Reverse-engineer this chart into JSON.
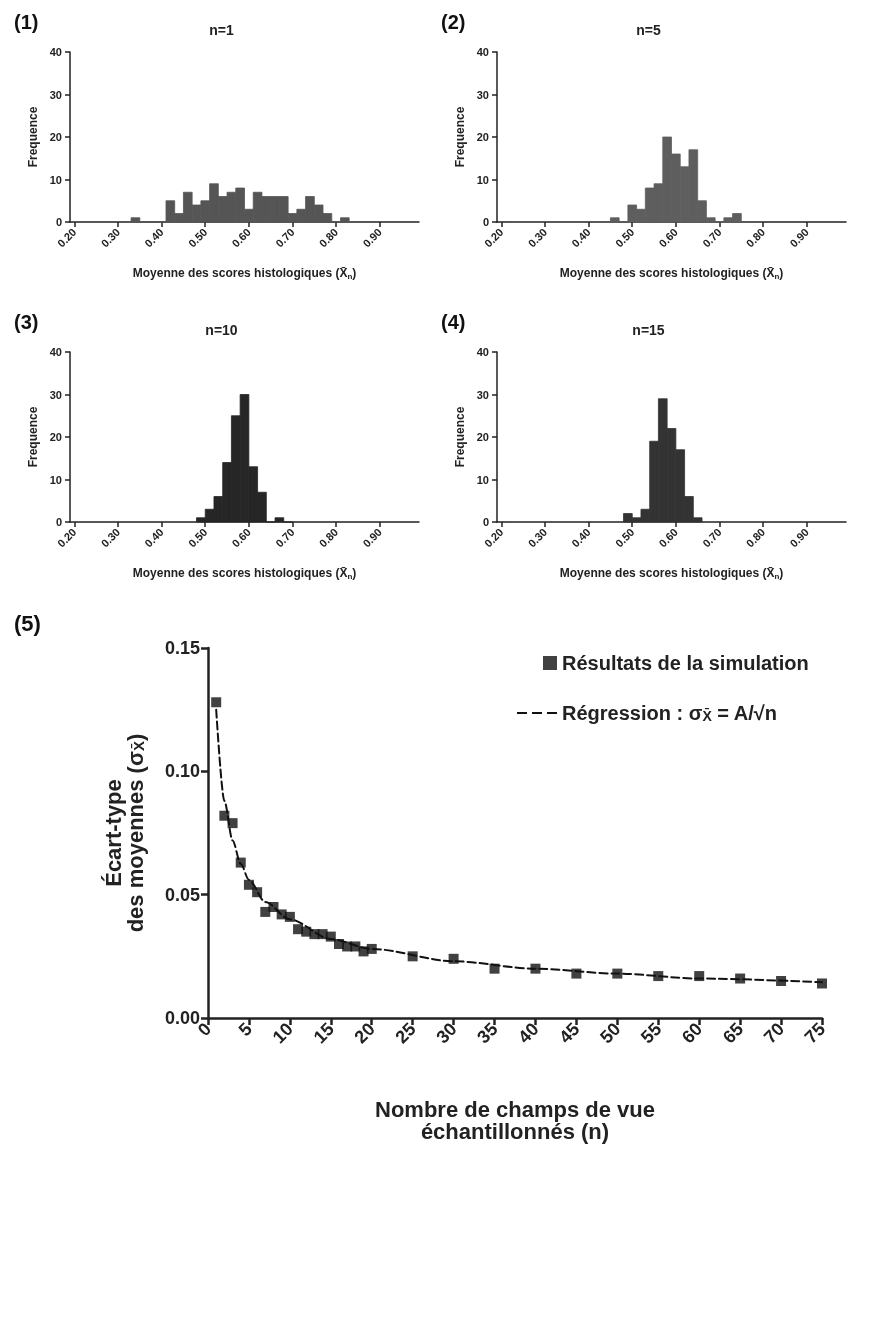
{
  "chart_data": [
    {
      "type": "histogram",
      "title": "n=1",
      "annotations": [
        "(1)"
      ],
      "xlabel": "Moyenne des scores histologiques (X̄$_{n}$)",
      "ylabel": "Frequence",
      "color": "#555555",
      "bins": [
        0.33,
        0.35,
        0.37,
        0.39,
        0.41,
        0.43,
        0.45,
        0.47,
        0.49,
        0.51,
        0.53,
        0.55,
        0.57,
        0.59,
        0.61,
        0.63,
        0.65,
        0.67,
        0.69,
        0.71,
        0.73,
        0.75,
        0.77,
        0.79,
        0.81,
        0.83
      ],
      "values": [
        1,
        0,
        0,
        0,
        5,
        2,
        7,
        4,
        5,
        9,
        6,
        7,
        8,
        3,
        7,
        6,
        6,
        6,
        2,
        3,
        6,
        4,
        2,
        0,
        1
      ],
      "xlim": [
        0.19,
        0.99
      ],
      "xticks": [
        {
          "value": 0.2,
          "label": "0.20"
        },
        {
          "value": 0.3,
          "label": "0.30"
        },
        {
          "value": 0.4,
          "label": "0.40"
        },
        {
          "value": 0.5,
          "label": "0.50"
        },
        {
          "value": 0.6,
          "label": "0.60"
        },
        {
          "value": 0.7,
          "label": "0.70"
        },
        {
          "value": 0.8,
          "label": "0.80"
        },
        {
          "value": 0.9,
          "label": "0.90"
        }
      ],
      "ylim": [
        0,
        40
      ],
      "yticks": [
        0,
        10,
        20,
        30,
        40
      ],
      "grid": false,
      "legend": false
    },
    {
      "type": "histogram",
      "title": "n=5",
      "annotations": [
        "(2)"
      ],
      "xlabel": "Moyenne des scores histologiques (X̄$_{n}$)",
      "ylabel": "Frequence",
      "color": "#5e5e5e",
      "bins": [
        0.45,
        0.47,
        0.49,
        0.51,
        0.53,
        0.55,
        0.57,
        0.59,
        0.61,
        0.63,
        0.65,
        0.67,
        0.69,
        0.71,
        0.73,
        0.75
      ],
      "values": [
        1,
        0,
        4,
        3,
        8,
        9,
        20,
        16,
        13,
        17,
        5,
        1,
        0,
        1,
        2
      ],
      "xlim": [
        0.19,
        0.99
      ],
      "xticks": [
        {
          "value": 0.2,
          "label": "0.20"
        },
        {
          "value": 0.3,
          "label": "0.30"
        },
        {
          "value": 0.4,
          "label": "0.40"
        },
        {
          "value": 0.5,
          "label": "0.50"
        },
        {
          "value": 0.6,
          "label": "0.60"
        },
        {
          "value": 0.7,
          "label": "0.70"
        },
        {
          "value": 0.8,
          "label": "0.80"
        },
        {
          "value": 0.9,
          "label": "0.90"
        }
      ],
      "ylim": [
        0,
        40
      ],
      "yticks": [
        0,
        10,
        20,
        30,
        40
      ],
      "grid": false,
      "legend": false
    },
    {
      "type": "histogram",
      "title": "n=10",
      "annotations": [
        "(3)"
      ],
      "xlabel": "Moyenne des scores histologiques (X̄$_{n}$)",
      "ylabel": "Frequence",
      "color": "#262626",
      "bins": [
        0.48,
        0.5,
        0.52,
        0.54,
        0.56,
        0.58,
        0.6,
        0.62,
        0.64,
        0.66,
        0.68,
        0.7
      ],
      "values": [
        1,
        3,
        6,
        14,
        25,
        30,
        13,
        7,
        0,
        1,
        0
      ],
      "xlim": [
        0.19,
        0.99
      ],
      "xticks": [
        {
          "value": 0.2,
          "label": "0.20"
        },
        {
          "value": 0.3,
          "label": "0.30"
        },
        {
          "value": 0.4,
          "label": "0.40"
        },
        {
          "value": 0.5,
          "label": "0.50"
        },
        {
          "value": 0.6,
          "label": "0.60"
        },
        {
          "value": 0.7,
          "label": "0.70"
        },
        {
          "value": 0.8,
          "label": "0.80"
        },
        {
          "value": 0.9,
          "label": "0.90"
        }
      ],
      "ylim": [
        0,
        40
      ],
      "yticks": [
        0,
        10,
        20,
        30,
        40
      ],
      "grid": false,
      "legend": false
    },
    {
      "type": "histogram",
      "title": "n=15",
      "annotations": [
        "(4)"
      ],
      "xlabel": "Moyenne des scores histologiques (X̄$_{n}$)",
      "ylabel": "Frequence",
      "color": "#333333",
      "bins": [
        0.48,
        0.5,
        0.52,
        0.54,
        0.56,
        0.58,
        0.6,
        0.62,
        0.64,
        0.66
      ],
      "values": [
        2,
        1,
        3,
        19,
        29,
        22,
        17,
        6,
        1
      ],
      "xlim": [
        0.19,
        0.99
      ],
      "xticks": [
        {
          "value": 0.2,
          "label": "0.20"
        },
        {
          "value": 0.3,
          "label": "0.30"
        },
        {
          "value": 0.4,
          "label": "0.40"
        },
        {
          "value": 0.5,
          "label": "0.50"
        },
        {
          "value": 0.6,
          "label": "0.60"
        },
        {
          "value": 0.7,
          "label": "0.70"
        },
        {
          "value": 0.8,
          "label": "0.80"
        },
        {
          "value": 0.9,
          "label": "0.90"
        }
      ],
      "ylim": [
        0,
        40
      ],
      "yticks": [
        0,
        10,
        20,
        30,
        40
      ],
      "grid": false,
      "legend": false
    },
    {
      "type": "scatter",
      "annotations": [
        "(5)"
      ],
      "xlabel": "Nombre de champs de vue\néchantillonnés (n)",
      "ylabel": "Écart-type\ndes moyennes (σ$_{X̄}$)",
      "series": [
        {
          "name": "Résultats de la simulation",
          "type": "scatter",
          "marker": "square",
          "color": "#111111",
          "x": [
            1,
            2,
            3,
            4,
            5,
            6,
            7,
            8,
            9,
            10,
            11,
            12,
            13,
            14,
            15,
            16,
            17,
            18,
            19,
            20,
            25,
            30,
            35,
            40,
            45,
            50,
            55,
            60,
            65,
            70,
            75
          ],
          "values": [
            0.128,
            0.082,
            0.079,
            0.063,
            0.054,
            0.051,
            0.043,
            0.045,
            0.042,
            0.041,
            0.036,
            0.035,
            0.034,
            0.034,
            0.033,
            0.03,
            0.029,
            0.029,
            0.027,
            0.028,
            0.025,
            0.024,
            0.02,
            0.02,
            0.018,
            0.018,
            0.017,
            0.017,
            0.016,
            0.015,
            0.014
          ]
        },
        {
          "name": "Régression : σ$_{X̄}$ = A/√n",
          "type": "line",
          "marker": "none",
          "line_style": "dashed",
          "color": "#111111",
          "x": [
            1,
            2,
            3,
            4,
            5,
            7,
            10,
            15,
            20,
            30,
            40,
            50,
            60,
            75
          ],
          "values": [
            0.125,
            0.088,
            0.072,
            0.0625,
            0.056,
            0.047,
            0.04,
            0.032,
            0.028,
            0.023,
            0.02,
            0.018,
            0.016,
            0.0145
          ]
        }
      ],
      "xlim": [
        0,
        75
      ],
      "xticks": [
        0,
        5,
        10,
        15,
        20,
        25,
        30,
        35,
        40,
        45,
        50,
        55,
        60,
        65,
        70,
        75
      ],
      "ylim": [
        0,
        0.15
      ],
      "yticks": [
        {
          "value": 0,
          "label": "0.00"
        },
        {
          "value": 0.05,
          "label": "0.05"
        },
        {
          "value": 0.1,
          "label": "0.10"
        },
        {
          "value": 0.15,
          "label": "0.15"
        }
      ],
      "grid": false,
      "legend": "top right"
    }
  ]
}
